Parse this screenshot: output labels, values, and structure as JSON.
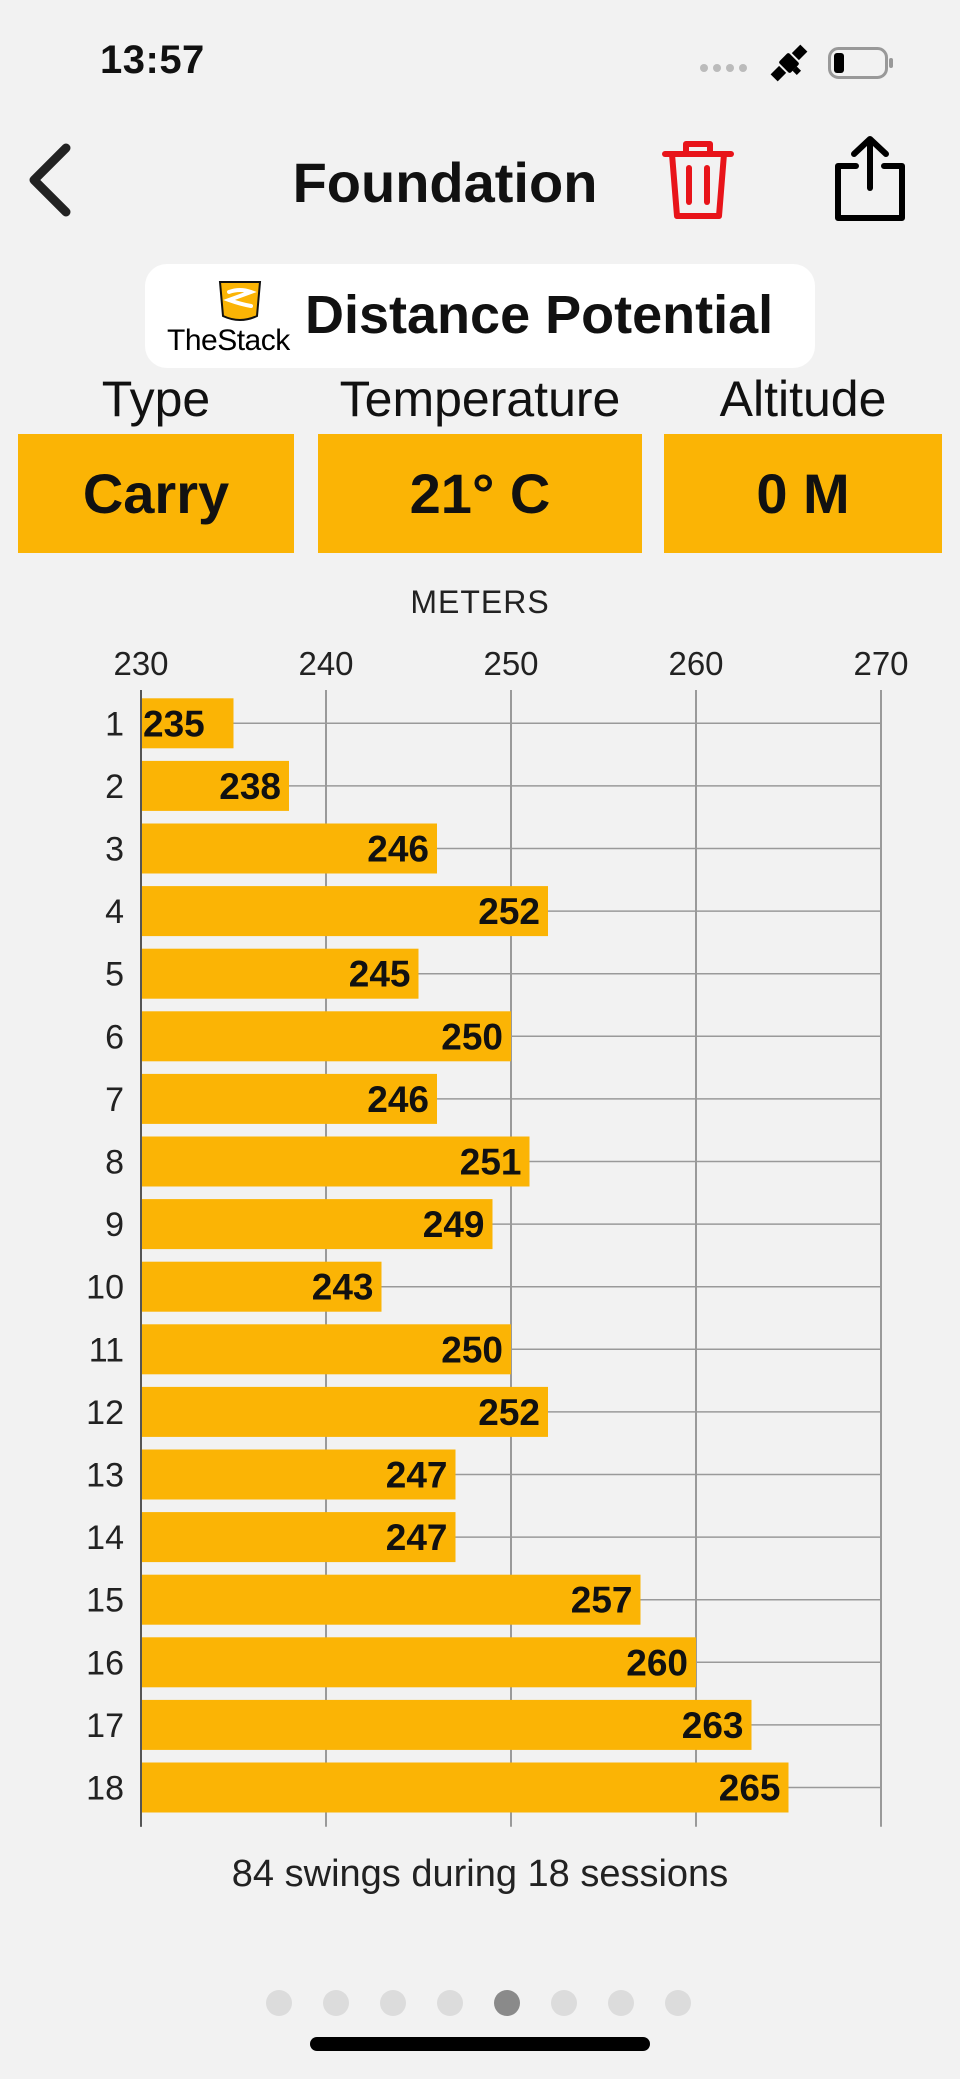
{
  "status_bar": {
    "time": "13:57"
  },
  "nav": {
    "title": "Foundation"
  },
  "brand": {
    "logo_text": "TheStack",
    "title": "Distance Potential"
  },
  "params": [
    {
      "label": "Type",
      "value": "Carry"
    },
    {
      "label": "Temperature",
      "value": "21° C"
    },
    {
      "label": "Altitude",
      "value": "0 M"
    }
  ],
  "colors": {
    "accent": "#fbb405",
    "delete": "#e8141a",
    "grid": "#9a9a9a",
    "background": "#f2f2f2"
  },
  "chart_data": {
    "type": "bar",
    "orientation": "horizontal",
    "x_axis_label": "METERS",
    "x_range": [
      230,
      270
    ],
    "x_ticks": [
      230,
      240,
      250,
      260,
      270
    ],
    "categories": [
      "1",
      "2",
      "3",
      "4",
      "5",
      "6",
      "7",
      "8",
      "9",
      "10",
      "11",
      "12",
      "13",
      "14",
      "15",
      "16",
      "17",
      "18"
    ],
    "values": [
      235,
      238,
      246,
      252,
      245,
      250,
      246,
      251,
      249,
      243,
      250,
      252,
      247,
      247,
      257,
      260,
      263,
      265
    ],
    "data_labels": true,
    "grid": true
  },
  "summary": "84 swings during 18 sessions",
  "pagination": {
    "total": 8,
    "active_index": 4
  }
}
